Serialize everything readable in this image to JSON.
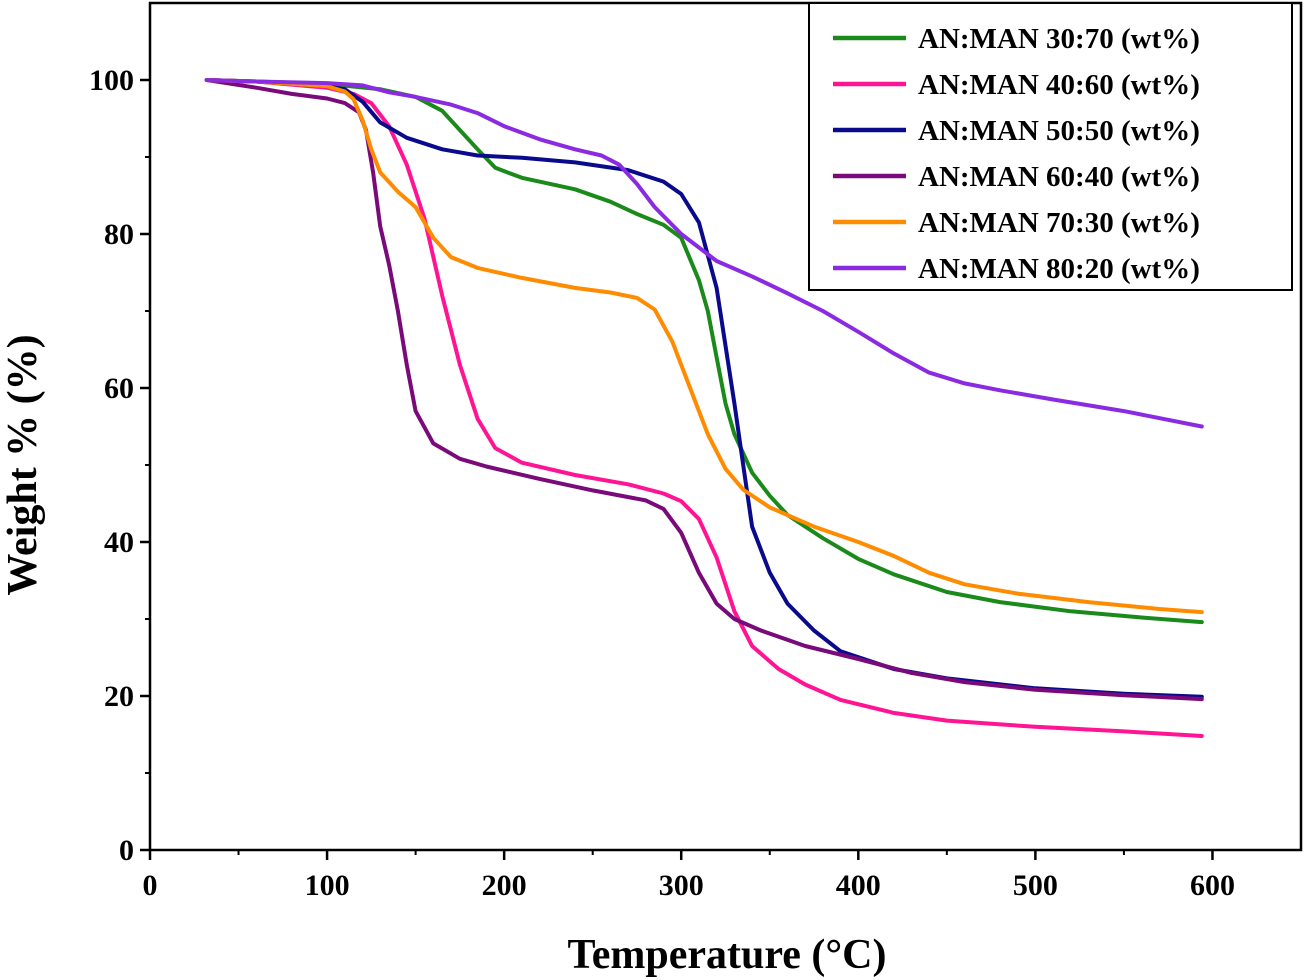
{
  "chart_data": {
    "type": "line",
    "title": "",
    "xlabel": "Temperature (°C)",
    "ylabel": "Weight % (%)",
    "xlim": [
      0,
      650
    ],
    "ylim": [
      0,
      110
    ],
    "xticks": [
      0,
      100,
      200,
      300,
      400,
      500,
      600
    ],
    "yticks": [
      0,
      20,
      40,
      60,
      80,
      100
    ],
    "grid": false,
    "legend_position": "top-right",
    "series": [
      {
        "name": "AN:MAN 30:70 (wt%)",
        "color": "#1a8a1a",
        "points": [
          [
            32,
            100
          ],
          [
            60,
            99.8
          ],
          [
            100,
            99.5
          ],
          [
            130,
            98.8
          ],
          [
            150,
            97.8
          ],
          [
            165,
            96
          ],
          [
            175,
            93.5
          ],
          [
            185,
            91
          ],
          [
            195,
            88.6
          ],
          [
            210,
            87.3
          ],
          [
            240,
            85.8
          ],
          [
            260,
            84.2
          ],
          [
            275,
            82.6
          ],
          [
            290,
            81.2
          ],
          [
            300,
            79.5
          ],
          [
            310,
            74
          ],
          [
            315,
            70
          ],
          [
            320,
            64
          ],
          [
            325,
            58
          ],
          [
            330,
            54
          ],
          [
            340,
            49
          ],
          [
            350,
            46
          ],
          [
            360,
            43.5
          ],
          [
            380,
            40.5
          ],
          [
            400,
            37.8
          ],
          [
            420,
            35.8
          ],
          [
            450,
            33.5
          ],
          [
            480,
            32.2
          ],
          [
            520,
            31
          ],
          [
            560,
            30.2
          ],
          [
            594,
            29.6
          ]
        ]
      },
      {
        "name": "AN:MAN 40:60 (wt%)",
        "color": "#ff1493",
        "points": [
          [
            32,
            100
          ],
          [
            60,
            99.8
          ],
          [
            100,
            99
          ],
          [
            115,
            98.2
          ],
          [
            125,
            97
          ],
          [
            135,
            94
          ],
          [
            145,
            89
          ],
          [
            155,
            82
          ],
          [
            165,
            72
          ],
          [
            175,
            63
          ],
          [
            185,
            56
          ],
          [
            195,
            52.2
          ],
          [
            210,
            50.3
          ],
          [
            240,
            48.7
          ],
          [
            270,
            47.5
          ],
          [
            290,
            46.3
          ],
          [
            300,
            45.3
          ],
          [
            310,
            43
          ],
          [
            320,
            38
          ],
          [
            330,
            31
          ],
          [
            340,
            26.5
          ],
          [
            355,
            23.5
          ],
          [
            370,
            21.5
          ],
          [
            390,
            19.5
          ],
          [
            420,
            17.8
          ],
          [
            450,
            16.8
          ],
          [
            500,
            16
          ],
          [
            550,
            15.4
          ],
          [
            594,
            14.8
          ]
        ]
      },
      {
        "name": "AN:MAN 50:50 (wt%)",
        "color": "#0a0a8c",
        "points": [
          [
            32,
            100
          ],
          [
            60,
            99.8
          ],
          [
            100,
            99.2
          ],
          [
            110,
            98.8
          ],
          [
            120,
            97.2
          ],
          [
            130,
            94.5
          ],
          [
            145,
            92.5
          ],
          [
            165,
            91
          ],
          [
            185,
            90.2
          ],
          [
            210,
            89.9
          ],
          [
            240,
            89.3
          ],
          [
            270,
            88.3
          ],
          [
            290,
            86.8
          ],
          [
            300,
            85.2
          ],
          [
            310,
            81.5
          ],
          [
            320,
            73
          ],
          [
            330,
            58
          ],
          [
            335,
            50
          ],
          [
            340,
            42
          ],
          [
            350,
            36
          ],
          [
            360,
            32
          ],
          [
            375,
            28.5
          ],
          [
            390,
            25.8
          ],
          [
            420,
            23.5
          ],
          [
            450,
            22.3
          ],
          [
            500,
            21
          ],
          [
            550,
            20.3
          ],
          [
            594,
            19.9
          ]
        ]
      },
      {
        "name": "AN:MAN 60:40 (wt%)",
        "color": "#7a0a7a",
        "points": [
          [
            32,
            100
          ],
          [
            60,
            99
          ],
          [
            80,
            98.2
          ],
          [
            100,
            97.6
          ],
          [
            110,
            97
          ],
          [
            118,
            95.8
          ],
          [
            122,
            93.5
          ],
          [
            126,
            88
          ],
          [
            130,
            81
          ],
          [
            135,
            76
          ],
          [
            140,
            70
          ],
          [
            145,
            63
          ],
          [
            150,
            57
          ],
          [
            160,
            52.8
          ],
          [
            175,
            50.8
          ],
          [
            190,
            49.8
          ],
          [
            220,
            48.2
          ],
          [
            250,
            46.7
          ],
          [
            280,
            45.4
          ],
          [
            290,
            44.3
          ],
          [
            300,
            41.2
          ],
          [
            310,
            36
          ],
          [
            320,
            32
          ],
          [
            330,
            30
          ],
          [
            345,
            28.5
          ],
          [
            370,
            26.5
          ],
          [
            400,
            24.8
          ],
          [
            430,
            23
          ],
          [
            460,
            21.8
          ],
          [
            500,
            20.8
          ],
          [
            550,
            20.1
          ],
          [
            594,
            19.6
          ]
        ]
      },
      {
        "name": "AN:MAN 70:30 (wt%)",
        "color": "#ff8c00",
        "points": [
          [
            32,
            100
          ],
          [
            60,
            99.8
          ],
          [
            100,
            99.2
          ],
          [
            110,
            98.5
          ],
          [
            115,
            97.5
          ],
          [
            120,
            94.8
          ],
          [
            125,
            91
          ],
          [
            130,
            88
          ],
          [
            140,
            85.5
          ],
          [
            150,
            83.5
          ],
          [
            160,
            79.5
          ],
          [
            170,
            77
          ],
          [
            185,
            75.6
          ],
          [
            210,
            74.3
          ],
          [
            240,
            73
          ],
          [
            260,
            72.4
          ],
          [
            275,
            71.7
          ],
          [
            285,
            70.2
          ],
          [
            295,
            66
          ],
          [
            305,
            60
          ],
          [
            315,
            54
          ],
          [
            325,
            49.5
          ],
          [
            335,
            46.8
          ],
          [
            350,
            44.5
          ],
          [
            375,
            42
          ],
          [
            400,
            40
          ],
          [
            420,
            38.2
          ],
          [
            440,
            36
          ],
          [
            460,
            34.5
          ],
          [
            490,
            33.3
          ],
          [
            530,
            32.2
          ],
          [
            570,
            31.3
          ],
          [
            594,
            30.9
          ]
        ]
      },
      {
        "name": "AN:MAN 80:20 (wt%)",
        "color": "#8a2be2",
        "points": [
          [
            32,
            100
          ],
          [
            60,
            99.8
          ],
          [
            100,
            99.6
          ],
          [
            120,
            99.3
          ],
          [
            135,
            98.4
          ],
          [
            150,
            97.8
          ],
          [
            170,
            96.8
          ],
          [
            185,
            95.7
          ],
          [
            200,
            94
          ],
          [
            220,
            92.3
          ],
          [
            240,
            91
          ],
          [
            255,
            90.2
          ],
          [
            265,
            89
          ],
          [
            275,
            86.5
          ],
          [
            285,
            83.5
          ],
          [
            300,
            80
          ],
          [
            320,
            76.5
          ],
          [
            340,
            74.5
          ],
          [
            360,
            72.3
          ],
          [
            380,
            70
          ],
          [
            400,
            67.3
          ],
          [
            420,
            64.5
          ],
          [
            440,
            62
          ],
          [
            460,
            60.6
          ],
          [
            480,
            59.7
          ],
          [
            510,
            58.5
          ],
          [
            550,
            57
          ],
          [
            594,
            55
          ]
        ]
      }
    ]
  }
}
